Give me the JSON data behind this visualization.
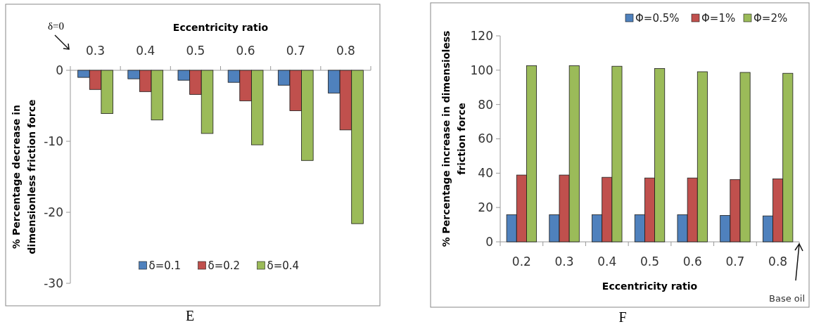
{
  "chart_data": [
    {
      "type": "bar",
      "title": "E",
      "xlabel": "Eccentricity ratio",
      "ylabel": "% Percentage decrease in\ndimensionless friction force",
      "categories": [
        "0.3",
        "0.4",
        "0.5",
        "0.6",
        "0.7",
        "0.8"
      ],
      "series": [
        {
          "name": "δ=0.1",
          "color": "#4f81bd",
          "values": [
            -1.0,
            -1.2,
            -1.4,
            -1.7,
            -2.1,
            -3.2
          ]
        },
        {
          "name": "δ=0.2",
          "color": "#c0504d",
          "values": [
            -2.7,
            -3.0,
            -3.4,
            -4.3,
            -5.7,
            -8.4
          ]
        },
        {
          "name": "δ=0.4",
          "color": "#9bbb59",
          "values": [
            -6.1,
            -7.0,
            -8.9,
            -10.5,
            -12.7,
            -21.6
          ]
        }
      ],
      "ylim": [
        -30,
        0
      ],
      "yticks": [
        0,
        -10,
        -20,
        -30
      ],
      "legend": "bottom",
      "annotations": [
        "δ=0"
      ]
    },
    {
      "type": "bar",
      "title": "F",
      "xlabel": "Eccentricity ratio",
      "ylabel": "% Percentage increase in dimensioless\nfriction force",
      "categories": [
        "0.2",
        "0.3",
        "0.4",
        "0.5",
        "0.6",
        "0.7",
        "0.8"
      ],
      "series": [
        {
          "name": "Φ=0.5%",
          "color": "#4f81bd",
          "values": [
            15.8,
            15.8,
            15.8,
            15.8,
            15.8,
            15.4,
            15.1
          ]
        },
        {
          "name": "Φ=1%",
          "color": "#c0504d",
          "values": [
            38.9,
            38.9,
            37.6,
            37.2,
            37.2,
            36.3,
            36.7
          ]
        },
        {
          "name": "Φ=2%",
          "color": "#9bbb59",
          "values": [
            102.6,
            102.6,
            102.3,
            101.0,
            99.1,
            98.7,
            98.2
          ]
        }
      ],
      "ylim": [
        0,
        120
      ],
      "yticks": [
        0,
        20,
        40,
        60,
        80,
        100,
        120
      ],
      "legend": "top",
      "annotations": [
        "Base oil"
      ]
    }
  ]
}
